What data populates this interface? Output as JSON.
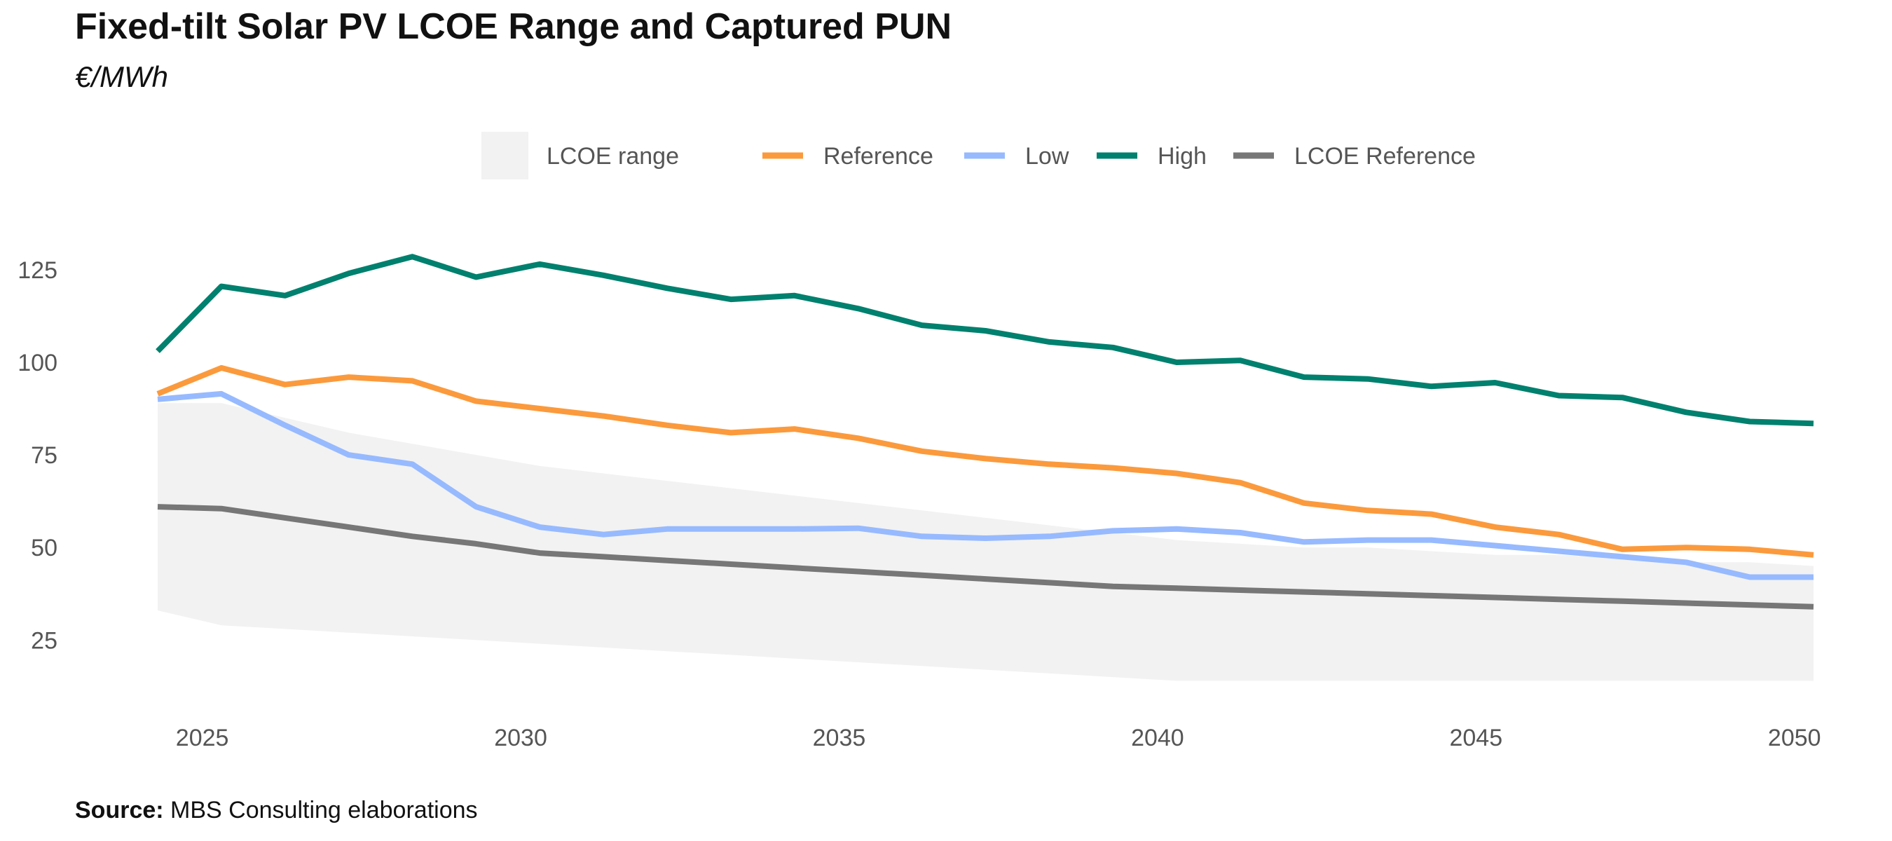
{
  "title": "Fixed-tilt Solar PV LCOE Range and Captured PUN",
  "subtitle": "€/MWh",
  "source": {
    "label": "Source:",
    "text": "MBS Consulting elaborations"
  },
  "colors": {
    "range_fill": "#f2f2f2",
    "reference": "#fb9a3c",
    "low": "#97baff",
    "high": "#00806e",
    "lcoe_reference": "#777777",
    "axis_text": "#555555"
  },
  "chart_data": {
    "type": "line",
    "xlim": [
      2024.3,
      2050.3
    ],
    "ylim": [
      12,
      135
    ],
    "x_ticks": [
      2025,
      2030,
      2035,
      2040,
      2045,
      2050
    ],
    "y_ticks": [
      25,
      50,
      75,
      100,
      125
    ],
    "grid": false,
    "legend_position": "top-center",
    "legend": [
      {
        "key": "range",
        "label": "LCOE range",
        "kind": "area"
      },
      {
        "key": "reference",
        "label": "Reference",
        "kind": "line"
      },
      {
        "key": "low",
        "label": "Low",
        "kind": "line"
      },
      {
        "key": "high",
        "label": "High",
        "kind": "line"
      },
      {
        "key": "lcoe_reference",
        "label": "LCOE Reference",
        "kind": "line"
      }
    ],
    "x": [
      2024.3,
      2025.3,
      2026.3,
      2027.3,
      2028.3,
      2029.3,
      2030.3,
      2031.3,
      2032.3,
      2033.3,
      2034.3,
      2035.3,
      2036.3,
      2037.3,
      2038.3,
      2039.3,
      2040.3,
      2041.3,
      2042.3,
      2043.3,
      2044.3,
      2045.3,
      2046.3,
      2047.3,
      2048.3,
      2049.3,
      2050.3
    ],
    "range": {
      "name": "LCOE range",
      "upper": [
        89,
        89,
        85,
        81,
        78,
        75,
        72,
        70,
        68,
        66,
        64,
        62,
        60,
        58,
        56,
        54,
        52,
        51,
        50,
        50,
        49,
        48,
        48,
        47,
        46,
        46,
        45
      ],
      "lower": [
        33,
        29,
        28,
        27,
        26,
        25,
        24,
        23,
        22,
        21,
        20,
        19,
        18,
        17,
        16,
        15,
        14,
        14,
        14,
        14,
        14,
        14,
        14,
        14,
        14,
        14,
        14
      ]
    },
    "series": [
      {
        "key": "reference",
        "name": "Reference",
        "values": [
          91.5,
          98.5,
          94,
          96,
          95,
          89.5,
          87.5,
          85.5,
          83,
          81,
          82,
          79.5,
          76,
          74,
          72.5,
          71.5,
          70,
          67.5,
          62,
          60,
          59,
          55.5,
          53.5,
          49.5,
          50,
          49.5,
          48
        ]
      },
      {
        "key": "low",
        "name": "Low",
        "values": [
          90,
          91.5,
          83,
          75,
          72.5,
          61,
          55.5,
          53.5,
          55,
          55,
          55,
          55.2,
          53,
          52.5,
          53,
          54.5,
          55,
          54,
          51.5,
          52,
          52,
          50.5,
          49,
          47.5,
          46,
          42,
          42
        ]
      },
      {
        "key": "high",
        "name": "High",
        "values": [
          103,
          120.5,
          118,
          124,
          128.5,
          123,
          126.5,
          123.5,
          120,
          117,
          118,
          114.5,
          110,
          108.5,
          105.5,
          104,
          100,
          100.5,
          96,
          95.5,
          93.5,
          94.5,
          91,
          90.5,
          86.5,
          84,
          83.5
        ]
      },
      {
        "key": "lcoe_reference",
        "name": "LCOE Reference",
        "values": [
          61,
          60.5,
          58,
          55.5,
          53,
          51,
          48.5,
          47.5,
          46.5,
          45.5,
          44.5,
          43.5,
          42.5,
          41.5,
          40.5,
          39.5,
          39,
          38.5,
          38,
          37.5,
          37,
          36.5,
          36,
          35.5,
          35,
          34.5,
          34
        ]
      }
    ]
  }
}
